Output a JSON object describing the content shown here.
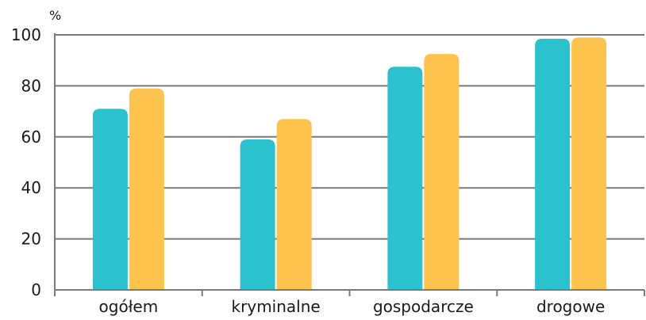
{
  "chart_data": {
    "type": "bar",
    "title": "",
    "xlabel": "",
    "ylabel": "%",
    "ylim": [
      0,
      100
    ],
    "yticks": [
      0,
      20,
      40,
      60,
      80,
      100
    ],
    "grid": true,
    "legend": "none",
    "categories": [
      "ogółem",
      "kryminalne",
      "gospodarcze",
      "drogowe"
    ],
    "series": [
      {
        "color": "#2bc1cd",
        "values": [
          71,
          59,
          87.5,
          98.5
        ]
      },
      {
        "color": "#fdc34d",
        "values": [
          79,
          67,
          92.5,
          99
        ]
      }
    ]
  }
}
